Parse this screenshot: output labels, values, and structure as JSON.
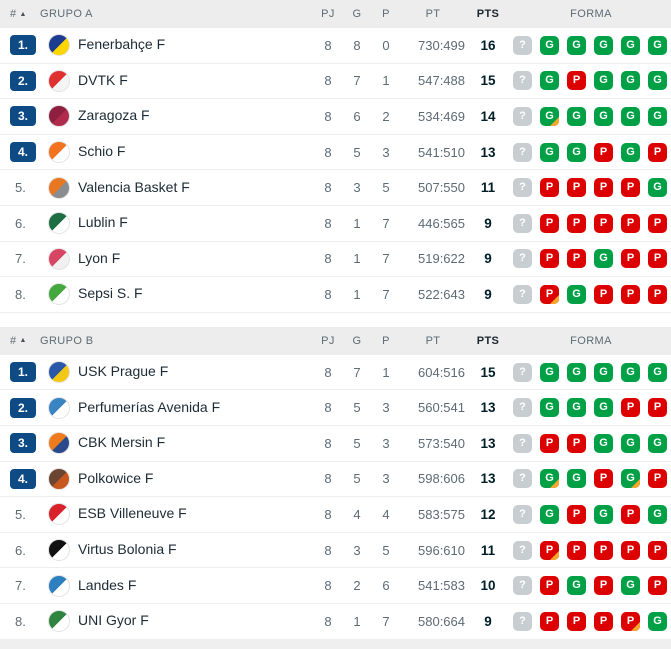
{
  "columns": {
    "pos": "#",
    "pj": "PJ",
    "g": "G",
    "p": "P",
    "pt": "PT",
    "pts": "PTS",
    "forma": "FORMA"
  },
  "sort_icon": "▲",
  "colors": {
    "win": "#00a146",
    "loss": "#dc0000",
    "unknown": "#c8cdd2",
    "overtime": "#f8a72c",
    "promotion_badge": "#0e4b85"
  },
  "groups": [
    {
      "label": "GRUPO A",
      "rows": [
        {
          "rank": "1.",
          "promoted": true,
          "team": "Fenerbahçe F",
          "logo": [
            "#1b3c8f",
            "#ffd500"
          ],
          "pj": "8",
          "g": "8",
          "p": "0",
          "pt": "730:499",
          "pts": "16",
          "form": [
            {
              "v": "?"
            },
            {
              "v": "G"
            },
            {
              "v": "G"
            },
            {
              "v": "G"
            },
            {
              "v": "G"
            },
            {
              "v": "G"
            }
          ]
        },
        {
          "rank": "2.",
          "promoted": true,
          "team": "DVTK F",
          "logo": [
            "#e03131",
            "#f5f5f5"
          ],
          "pj": "8",
          "g": "7",
          "p": "1",
          "pt": "547:488",
          "pts": "15",
          "form": [
            {
              "v": "?"
            },
            {
              "v": "G"
            },
            {
              "v": "P"
            },
            {
              "v": "G"
            },
            {
              "v": "G"
            },
            {
              "v": "G"
            }
          ]
        },
        {
          "rank": "3.",
          "promoted": true,
          "team": "Zaragoza F",
          "logo": [
            "#8e1f3f",
            "#b02a4c"
          ],
          "pj": "8",
          "g": "6",
          "p": "2",
          "pt": "534:469",
          "pts": "14",
          "form": [
            {
              "v": "?"
            },
            {
              "v": "G",
              "ot": true
            },
            {
              "v": "G"
            },
            {
              "v": "G"
            },
            {
              "v": "G"
            },
            {
              "v": "G"
            }
          ]
        },
        {
          "rank": "4.",
          "promoted": true,
          "team": "Schio F",
          "logo": [
            "#f4731f",
            "#ffffff"
          ],
          "pj": "8",
          "g": "5",
          "p": "3",
          "pt": "541:510",
          "pts": "13",
          "form": [
            {
              "v": "?"
            },
            {
              "v": "G"
            },
            {
              "v": "G"
            },
            {
              "v": "P"
            },
            {
              "v": "G"
            },
            {
              "v": "P"
            }
          ]
        },
        {
          "rank": "5.",
          "promoted": false,
          "team": "Valencia Basket F",
          "logo": [
            "#e87722",
            "#8a8d8f"
          ],
          "pj": "8",
          "g": "3",
          "p": "5",
          "pt": "507:550",
          "pts": "11",
          "form": [
            {
              "v": "?"
            },
            {
              "v": "P"
            },
            {
              "v": "P"
            },
            {
              "v": "P"
            },
            {
              "v": "P"
            },
            {
              "v": "G"
            }
          ]
        },
        {
          "rank": "6.",
          "promoted": false,
          "team": "Lublin F",
          "logo": [
            "#1d6e42",
            "#ffffff"
          ],
          "pj": "8",
          "g": "1",
          "p": "7",
          "pt": "446:565",
          "pts": "9",
          "form": [
            {
              "v": "?"
            },
            {
              "v": "P"
            },
            {
              "v": "P"
            },
            {
              "v": "P"
            },
            {
              "v": "P"
            },
            {
              "v": "P"
            }
          ]
        },
        {
          "rank": "7.",
          "promoted": false,
          "team": "Lyon F",
          "logo": [
            "#d64561",
            "#f0f0f0"
          ],
          "pj": "8",
          "g": "1",
          "p": "7",
          "pt": "519:622",
          "pts": "9",
          "form": [
            {
              "v": "?"
            },
            {
              "v": "P"
            },
            {
              "v": "P"
            },
            {
              "v": "G"
            },
            {
              "v": "P"
            },
            {
              "v": "P"
            }
          ]
        },
        {
          "rank": "8.",
          "promoted": false,
          "team": "Sepsi S. F",
          "logo": [
            "#44a83e",
            "#ffffff"
          ],
          "pj": "8",
          "g": "1",
          "p": "7",
          "pt": "522:643",
          "pts": "9",
          "form": [
            {
              "v": "?"
            },
            {
              "v": "P",
              "ot": true
            },
            {
              "v": "G"
            },
            {
              "v": "P"
            },
            {
              "v": "P"
            },
            {
              "v": "P"
            }
          ]
        }
      ]
    },
    {
      "label": "GRUPO B",
      "rows": [
        {
          "rank": "1.",
          "promoted": true,
          "team": "USK Prague F",
          "logo": [
            "#2a58a8",
            "#f3c814"
          ],
          "pj": "8",
          "g": "7",
          "p": "1",
          "pt": "604:516",
          "pts": "15",
          "form": [
            {
              "v": "?"
            },
            {
              "v": "G"
            },
            {
              "v": "G"
            },
            {
              "v": "G"
            },
            {
              "v": "G"
            },
            {
              "v": "G"
            }
          ]
        },
        {
          "rank": "2.",
          "promoted": true,
          "team": "Perfumerías Avenida F",
          "logo": [
            "#3b84c4",
            "#ffffff"
          ],
          "pj": "8",
          "g": "5",
          "p": "3",
          "pt": "560:541",
          "pts": "13",
          "form": [
            {
              "v": "?"
            },
            {
              "v": "G"
            },
            {
              "v": "G"
            },
            {
              "v": "G"
            },
            {
              "v": "P"
            },
            {
              "v": "P"
            }
          ]
        },
        {
          "rank": "3.",
          "promoted": true,
          "team": "CBK Mersin F",
          "logo": [
            "#ee7c1e",
            "#2b4a8b"
          ],
          "pj": "8",
          "g": "5",
          "p": "3",
          "pt": "573:540",
          "pts": "13",
          "form": [
            {
              "v": "?"
            },
            {
              "v": "P"
            },
            {
              "v": "P"
            },
            {
              "v": "G"
            },
            {
              "v": "G"
            },
            {
              "v": "G"
            }
          ]
        },
        {
          "rank": "4.",
          "promoted": true,
          "team": "Polkowice F",
          "logo": [
            "#6b4532",
            "#c8571f"
          ],
          "pj": "8",
          "g": "5",
          "p": "3",
          "pt": "598:606",
          "pts": "13",
          "form": [
            {
              "v": "?"
            },
            {
              "v": "G",
              "ot": true
            },
            {
              "v": "G"
            },
            {
              "v": "P"
            },
            {
              "v": "G",
              "ot": true
            },
            {
              "v": "P"
            }
          ]
        },
        {
          "rank": "5.",
          "promoted": false,
          "team": "ESB Villeneuve F",
          "logo": [
            "#d8232a",
            "#ffffff"
          ],
          "pj": "8",
          "g": "4",
          "p": "4",
          "pt": "583:575",
          "pts": "12",
          "form": [
            {
              "v": "?"
            },
            {
              "v": "G"
            },
            {
              "v": "P"
            },
            {
              "v": "G"
            },
            {
              "v": "P"
            },
            {
              "v": "G"
            }
          ]
        },
        {
          "rank": "6.",
          "promoted": false,
          "team": "Virtus Bolonia F",
          "logo": [
            "#111111",
            "#ffffff"
          ],
          "pj": "8",
          "g": "3",
          "p": "5",
          "pt": "596:610",
          "pts": "11",
          "form": [
            {
              "v": "?"
            },
            {
              "v": "P",
              "ot": true
            },
            {
              "v": "P"
            },
            {
              "v": "P"
            },
            {
              "v": "P"
            },
            {
              "v": "P"
            }
          ]
        },
        {
          "rank": "7.",
          "promoted": false,
          "team": "Landes F",
          "logo": [
            "#2d7fc0",
            "#ffffff"
          ],
          "pj": "8",
          "g": "2",
          "p": "6",
          "pt": "541:583",
          "pts": "10",
          "form": [
            {
              "v": "?"
            },
            {
              "v": "P"
            },
            {
              "v": "G"
            },
            {
              "v": "P"
            },
            {
              "v": "G"
            },
            {
              "v": "P"
            }
          ]
        },
        {
          "rank": "8.",
          "promoted": false,
          "team": "UNI Gyor F",
          "logo": [
            "#2f8540",
            "#ffffff"
          ],
          "pj": "8",
          "g": "1",
          "p": "7",
          "pt": "580:664",
          "pts": "9",
          "form": [
            {
              "v": "?"
            },
            {
              "v": "P"
            },
            {
              "v": "P"
            },
            {
              "v": "P"
            },
            {
              "v": "P",
              "ot": true
            },
            {
              "v": "G"
            }
          ]
        }
      ]
    }
  ]
}
